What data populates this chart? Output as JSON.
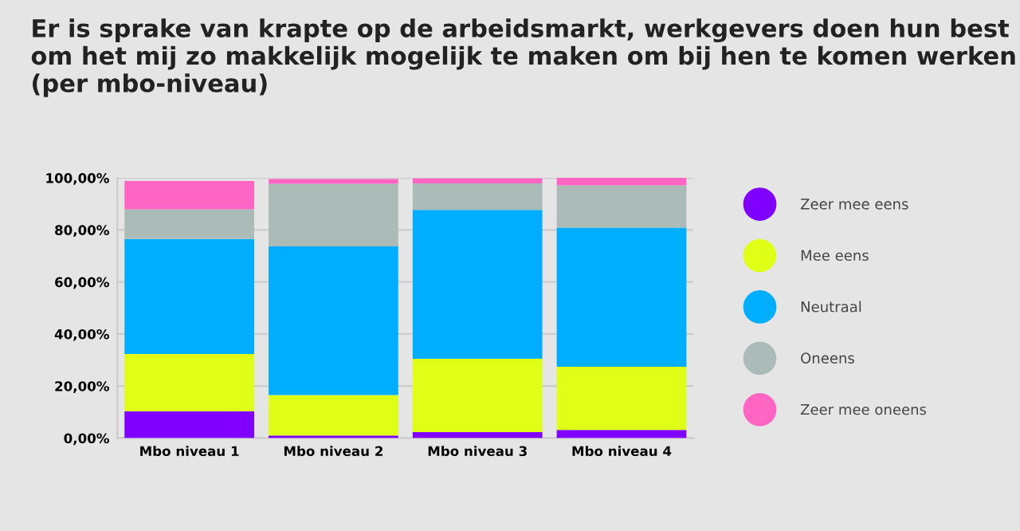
{
  "chart_data": {
    "type": "bar",
    "title": "Er is sprake van krapte op de arbeidsmarkt, werkgevers doen hun best om het mij zo makkelijk mogelijk te maken om bij hen te komen werken (per mbo-niveau)",
    "categories": [
      "Mbo niveau 1",
      "Mbo niveau 2",
      "Mbo niveau 3",
      "Mbo niveau 4"
    ],
    "stacked": true,
    "series": [
      {
        "name": "Zeer mee eens",
        "color": "#7f00ff",
        "values": [
          10.3,
          1.0,
          2.3,
          3.1
        ]
      },
      {
        "name": "Mee eens",
        "color": "#dfff17",
        "values": [
          22.0,
          15.5,
          28.2,
          24.3
        ]
      },
      {
        "name": "Neutraal",
        "color": "#00aeff",
        "values": [
          44.2,
          57.2,
          57.2,
          53.5
        ]
      },
      {
        "name": "Oneens",
        "color": "#abbcb8",
        "values": [
          11.4,
          24.0,
          10.2,
          16.2
        ]
      },
      {
        "name": "Zeer mee oneens",
        "color": "#ff66c4",
        "values": [
          10.9,
          1.9,
          1.9,
          2.9
        ]
      }
    ],
    "ylim": [
      0,
      100
    ],
    "yticks": [
      {
        "value": 0,
        "label": "0,00%"
      },
      {
        "value": 20,
        "label": "20,00%"
      },
      {
        "value": 40,
        "label": "40,00%"
      },
      {
        "value": 60,
        "label": "60,00%"
      },
      {
        "value": 80,
        "label": "80,00%"
      },
      {
        "value": 100,
        "label": "100,00%"
      }
    ],
    "grid": "y",
    "legend": "right"
  }
}
